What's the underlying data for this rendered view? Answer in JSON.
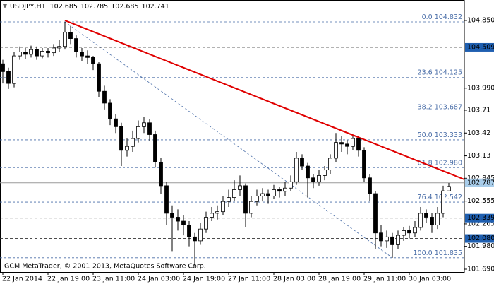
{
  "header": {
    "symbol": "USDJPY,H1",
    "open": 102.685,
    "high": 102.785,
    "low": 102.685,
    "close": 102.741
  },
  "footer": "GCM MetaTrader, © 2001-2013, MetaQuotes Software Corp.",
  "chart_data": {
    "type": "candlestick",
    "categories": [
      "22 Jan 2014",
      null,
      null,
      null,
      null,
      null,
      null,
      null,
      "22 Jan 19:00",
      null,
      null,
      null,
      null,
      null,
      null,
      null,
      "23 Jan 11:00",
      null,
      null,
      null,
      null,
      null,
      null,
      null,
      "24 Jan 03:00",
      null,
      null,
      null,
      null,
      null,
      null,
      null,
      "24 Jan 19:00",
      null,
      null,
      null,
      null,
      null,
      null,
      null,
      "27 Jan 11:00",
      null,
      null,
      null,
      null,
      null,
      null,
      null,
      "28 Jan 03:00",
      null,
      null,
      null,
      null,
      null,
      null,
      null,
      "28 Jan 19:00",
      null,
      null,
      null,
      null,
      null,
      null,
      null,
      "29 Jan 11:00",
      null,
      null,
      null,
      null,
      null,
      null,
      null,
      "30 Jan 03:00",
      null,
      null,
      null,
      null,
      null,
      null,
      null
    ],
    "candles": [
      [
        104.3,
        104.35,
        104.05,
        104.2
      ],
      [
        104.2,
        104.25,
        103.98,
        104.05
      ],
      [
        104.05,
        104.45,
        104.0,
        104.4
      ],
      [
        104.4,
        104.52,
        104.35,
        104.45
      ],
      [
        104.45,
        104.5,
        104.36,
        104.42
      ],
      [
        104.42,
        104.53,
        104.38,
        104.48
      ],
      [
        104.48,
        104.52,
        104.35,
        104.4
      ],
      [
        104.4,
        104.5,
        104.37,
        104.46
      ],
      [
        104.46,
        104.5,
        104.38,
        104.44
      ],
      [
        104.44,
        104.55,
        104.4,
        104.5
      ],
      [
        104.5,
        104.6,
        104.45,
        104.52
      ],
      [
        104.52,
        104.832,
        104.48,
        104.7
      ],
      [
        104.7,
        104.78,
        104.55,
        104.62
      ],
      [
        104.62,
        104.66,
        104.38,
        104.45
      ],
      [
        104.45,
        104.5,
        104.33,
        104.4
      ],
      [
        104.4,
        104.47,
        104.3,
        104.38
      ],
      [
        104.38,
        104.4,
        104.22,
        104.3
      ],
      [
        104.3,
        104.32,
        103.88,
        103.95
      ],
      [
        103.95,
        104.02,
        103.72,
        103.8
      ],
      [
        103.8,
        103.85,
        103.52,
        103.6
      ],
      [
        103.6,
        103.66,
        103.42,
        103.5
      ],
      [
        103.5,
        103.55,
        103.0,
        103.2
      ],
      [
        103.2,
        103.35,
        103.12,
        103.25
      ],
      [
        103.25,
        103.45,
        103.18,
        103.35
      ],
      [
        103.35,
        103.58,
        103.3,
        103.5
      ],
      [
        103.5,
        103.62,
        103.42,
        103.55
      ],
      [
        103.55,
        103.6,
        103.32,
        103.4
      ],
      [
        103.4,
        103.45,
        102.98,
        103.05
      ],
      [
        103.05,
        103.1,
        102.65,
        102.75
      ],
      [
        102.75,
        102.8,
        102.25,
        102.4
      ],
      [
        102.4,
        102.5,
        101.92,
        102.35
      ],
      [
        102.35,
        102.45,
        102.18,
        102.3
      ],
      [
        102.3,
        102.38,
        102.12,
        102.25
      ],
      [
        102.25,
        102.3,
        101.98,
        102.1
      ],
      [
        102.1,
        102.15,
        101.72,
        102.05
      ],
      [
        102.05,
        102.28,
        102.0,
        102.2
      ],
      [
        102.2,
        102.42,
        102.15,
        102.35
      ],
      [
        102.35,
        102.48,
        102.3,
        102.4
      ],
      [
        102.4,
        102.5,
        102.32,
        102.42
      ],
      [
        102.42,
        102.62,
        102.38,
        102.55
      ],
      [
        102.55,
        102.7,
        102.48,
        102.6
      ],
      [
        102.6,
        102.82,
        102.55,
        102.7
      ],
      [
        102.7,
        102.88,
        102.62,
        102.75
      ],
      [
        102.75,
        102.78,
        102.22,
        102.4
      ],
      [
        102.4,
        102.62,
        102.35,
        102.55
      ],
      [
        102.55,
        102.7,
        102.5,
        102.62
      ],
      [
        102.62,
        102.72,
        102.55,
        102.65
      ],
      [
        102.65,
        102.7,
        102.52,
        102.62
      ],
      [
        102.62,
        102.76,
        102.58,
        102.7
      ],
      [
        102.7,
        102.74,
        102.6,
        102.68
      ],
      [
        102.68,
        102.8,
        102.62,
        102.72
      ],
      [
        102.72,
        102.88,
        102.68,
        102.8
      ],
      [
        102.8,
        103.18,
        102.76,
        103.1
      ],
      [
        103.1,
        103.15,
        102.95,
        103.0
      ],
      [
        103.0,
        103.04,
        102.6,
        102.85
      ],
      [
        102.85,
        102.9,
        102.72,
        102.8
      ],
      [
        102.8,
        102.95,
        102.75,
        102.88
      ],
      [
        102.88,
        103.0,
        102.82,
        102.95
      ],
      [
        102.95,
        103.15,
        102.9,
        103.1
      ],
      [
        103.1,
        103.42,
        103.05,
        103.3
      ],
      [
        103.3,
        103.38,
        103.18,
        103.28
      ],
      [
        103.28,
        103.33,
        103.15,
        103.25
      ],
      [
        103.25,
        103.4,
        103.2,
        103.35
      ],
      [
        103.35,
        103.38,
        103.12,
        103.2
      ],
      [
        103.2,
        103.24,
        102.8,
        102.85
      ],
      [
        102.85,
        102.9,
        102.55,
        102.65
      ],
      [
        102.65,
        102.68,
        101.95,
        102.15
      ],
      [
        102.15,
        102.25,
        101.98,
        102.05
      ],
      [
        102.05,
        102.18,
        101.96,
        102.1
      ],
      [
        102.1,
        102.15,
        101.835,
        102.0
      ],
      [
        102.0,
        102.18,
        101.95,
        102.12
      ],
      [
        102.12,
        102.22,
        102.05,
        102.18
      ],
      [
        102.18,
        102.24,
        102.08,
        102.15
      ],
      [
        102.15,
        102.3,
        102.1,
        102.22
      ],
      [
        102.22,
        102.48,
        102.18,
        102.4
      ],
      [
        102.4,
        102.45,
        102.28,
        102.35
      ],
      [
        102.35,
        102.4,
        102.15,
        102.25
      ],
      [
        102.25,
        102.48,
        102.2,
        102.4
      ],
      [
        102.4,
        102.75,
        102.35,
        102.685
      ],
      [
        102.685,
        102.785,
        102.685,
        102.741
      ]
    ],
    "up_color": "#ffffff",
    "down_color": "#000000",
    "ylim": [
      101.654,
      105.11
    ],
    "yticks": [
      {
        "value": 104.85,
        "label": "104.850"
      },
      {
        "value": 103.99,
        "label": "103.990"
      },
      103.71,
      103.42,
      103.13,
      102.845,
      102.555,
      102.265,
      {
        "value": 101.98,
        "label": "101.980"
      },
      {
        "value": 101.69,
        "label": "101.690"
      }
    ],
    "fib": {
      "color": "#4a6ea8",
      "levels": [
        {
          "level": "0.0",
          "price": 104.832
        },
        {
          "level": "23.6",
          "price": 104.125
        },
        {
          "level": "38.2",
          "price": 103.687
        },
        {
          "level": "50.0",
          "price": 103.333
        },
        {
          "level": "61.8",
          "price": {
            "value": 102.98,
            "label": "102.980"
          }
        },
        {
          "level": "76.4",
          "price": 102.542
        },
        {
          "level": "100.0",
          "price": 101.835
        }
      ]
    },
    "price_lines": [
      104.509,
      102.339,
      {
        "value": 102.08,
        "label": "102.080"
      }
    ],
    "price_line_color": "#1f5fb0",
    "current_price": 102.787,
    "trendline": {
      "color": "#e00000",
      "values": [
        104.85,
        102.83
      ]
    }
  }
}
